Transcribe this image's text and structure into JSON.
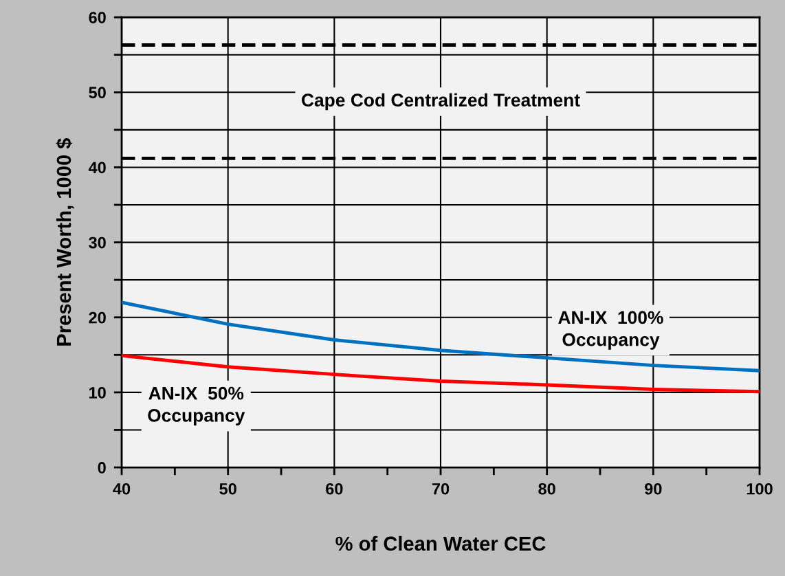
{
  "chart_data": {
    "type": "line",
    "xlabel": "% of Clean Water CEC",
    "ylabel": "Present Worth, 1000 $",
    "x": [
      40,
      50,
      60,
      70,
      80,
      90,
      100
    ],
    "series": [
      {
        "name": "AN-IX  100%\nOccupancy",
        "color": "#0070c0",
        "values": [
          22.0,
          19.1,
          17.0,
          15.6,
          14.6,
          13.6,
          12.9
        ]
      },
      {
        "name": "AN-IX  50%\nOccupancy",
        "color": "#ff0000",
        "values": [
          14.9,
          13.4,
          12.4,
          11.5,
          11.0,
          10.4,
          10.1
        ]
      }
    ],
    "ref_lines": [
      {
        "axis": "y",
        "value": 56.3,
        "color": "#000000",
        "line_style": "dashed"
      },
      {
        "axis": "y",
        "value": 41.2,
        "color": "#000000",
        "line_style": "dashed"
      }
    ],
    "annotations": [
      "Cape Cod Centralized Treatment"
    ],
    "xlim": [
      40,
      100
    ],
    "xticks": [
      40,
      {
        "value": 45,
        "label": null
      },
      50,
      {
        "value": 55,
        "label": null
      },
      60,
      {
        "value": 65,
        "label": null
      },
      70,
      {
        "value": 75,
        "label": null
      },
      80,
      {
        "value": 85,
        "label": null
      },
      90,
      {
        "value": 95,
        "label": null
      },
      100
    ],
    "ylim": [
      0,
      60
    ],
    "yticks": [
      0,
      {
        "value": 5,
        "label": null
      },
      10,
      {
        "value": 15,
        "label": null
      },
      20,
      {
        "value": 25,
        "label": null
      },
      30,
      {
        "value": 35,
        "label": null
      },
      40,
      {
        "value": 45,
        "label": null
      },
      50,
      {
        "value": 55,
        "label": null
      },
      60
    ],
    "grid": true,
    "marker": "none",
    "line_style": "solid",
    "legend": false
  }
}
